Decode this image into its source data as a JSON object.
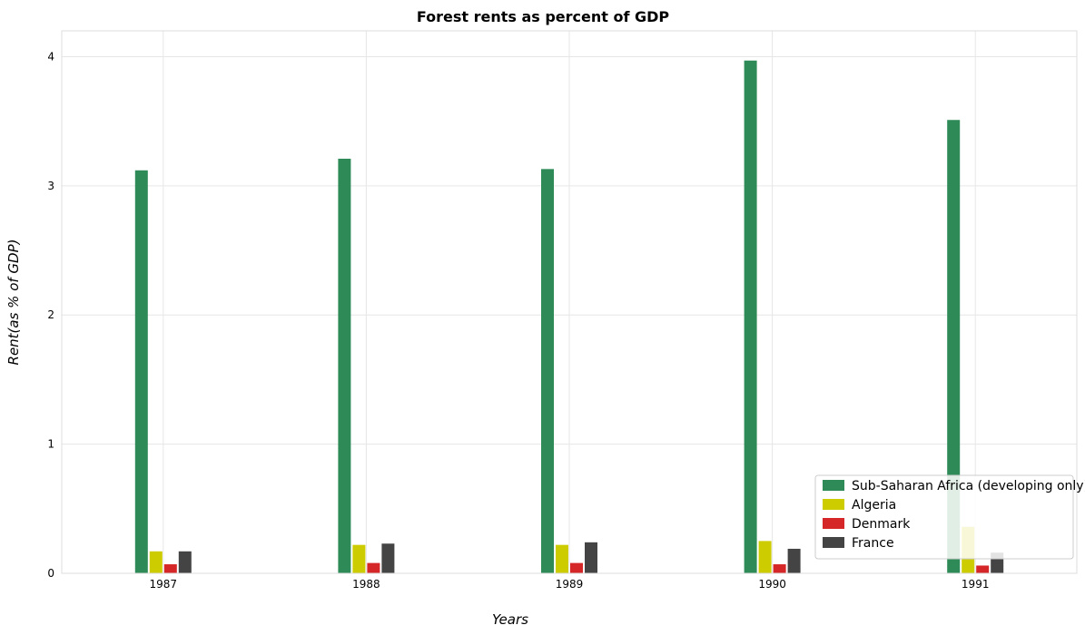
{
  "chart_data": {
    "type": "bar",
    "title": "Forest rents as percent of GDP",
    "xlabel": "Years",
    "ylabel": "Rent(as % of GDP)",
    "categories": [
      "1987",
      "1988",
      "1989",
      "1990",
      "1991"
    ],
    "ylim": [
      0,
      4.2
    ],
    "yticks": [
      "0",
      "1",
      "2",
      "3",
      "4"
    ],
    "grid": true,
    "legend_position": "bottom-right",
    "series": [
      {
        "name": "Sub-Saharan Africa (developing only)",
        "color": "#2e8b57",
        "values": [
          3.12,
          3.21,
          3.13,
          3.97,
          3.51
        ]
      },
      {
        "name": "Algeria",
        "color": "#cccc00",
        "values": [
          0.17,
          0.22,
          0.22,
          0.25,
          0.36
        ]
      },
      {
        "name": "Denmark",
        "color": "#d62728",
        "values": [
          0.07,
          0.08,
          0.08,
          0.07,
          0.06
        ]
      },
      {
        "name": "France",
        "color": "#444444",
        "values": [
          0.17,
          0.23,
          0.24,
          0.19,
          0.16
        ]
      }
    ]
  }
}
